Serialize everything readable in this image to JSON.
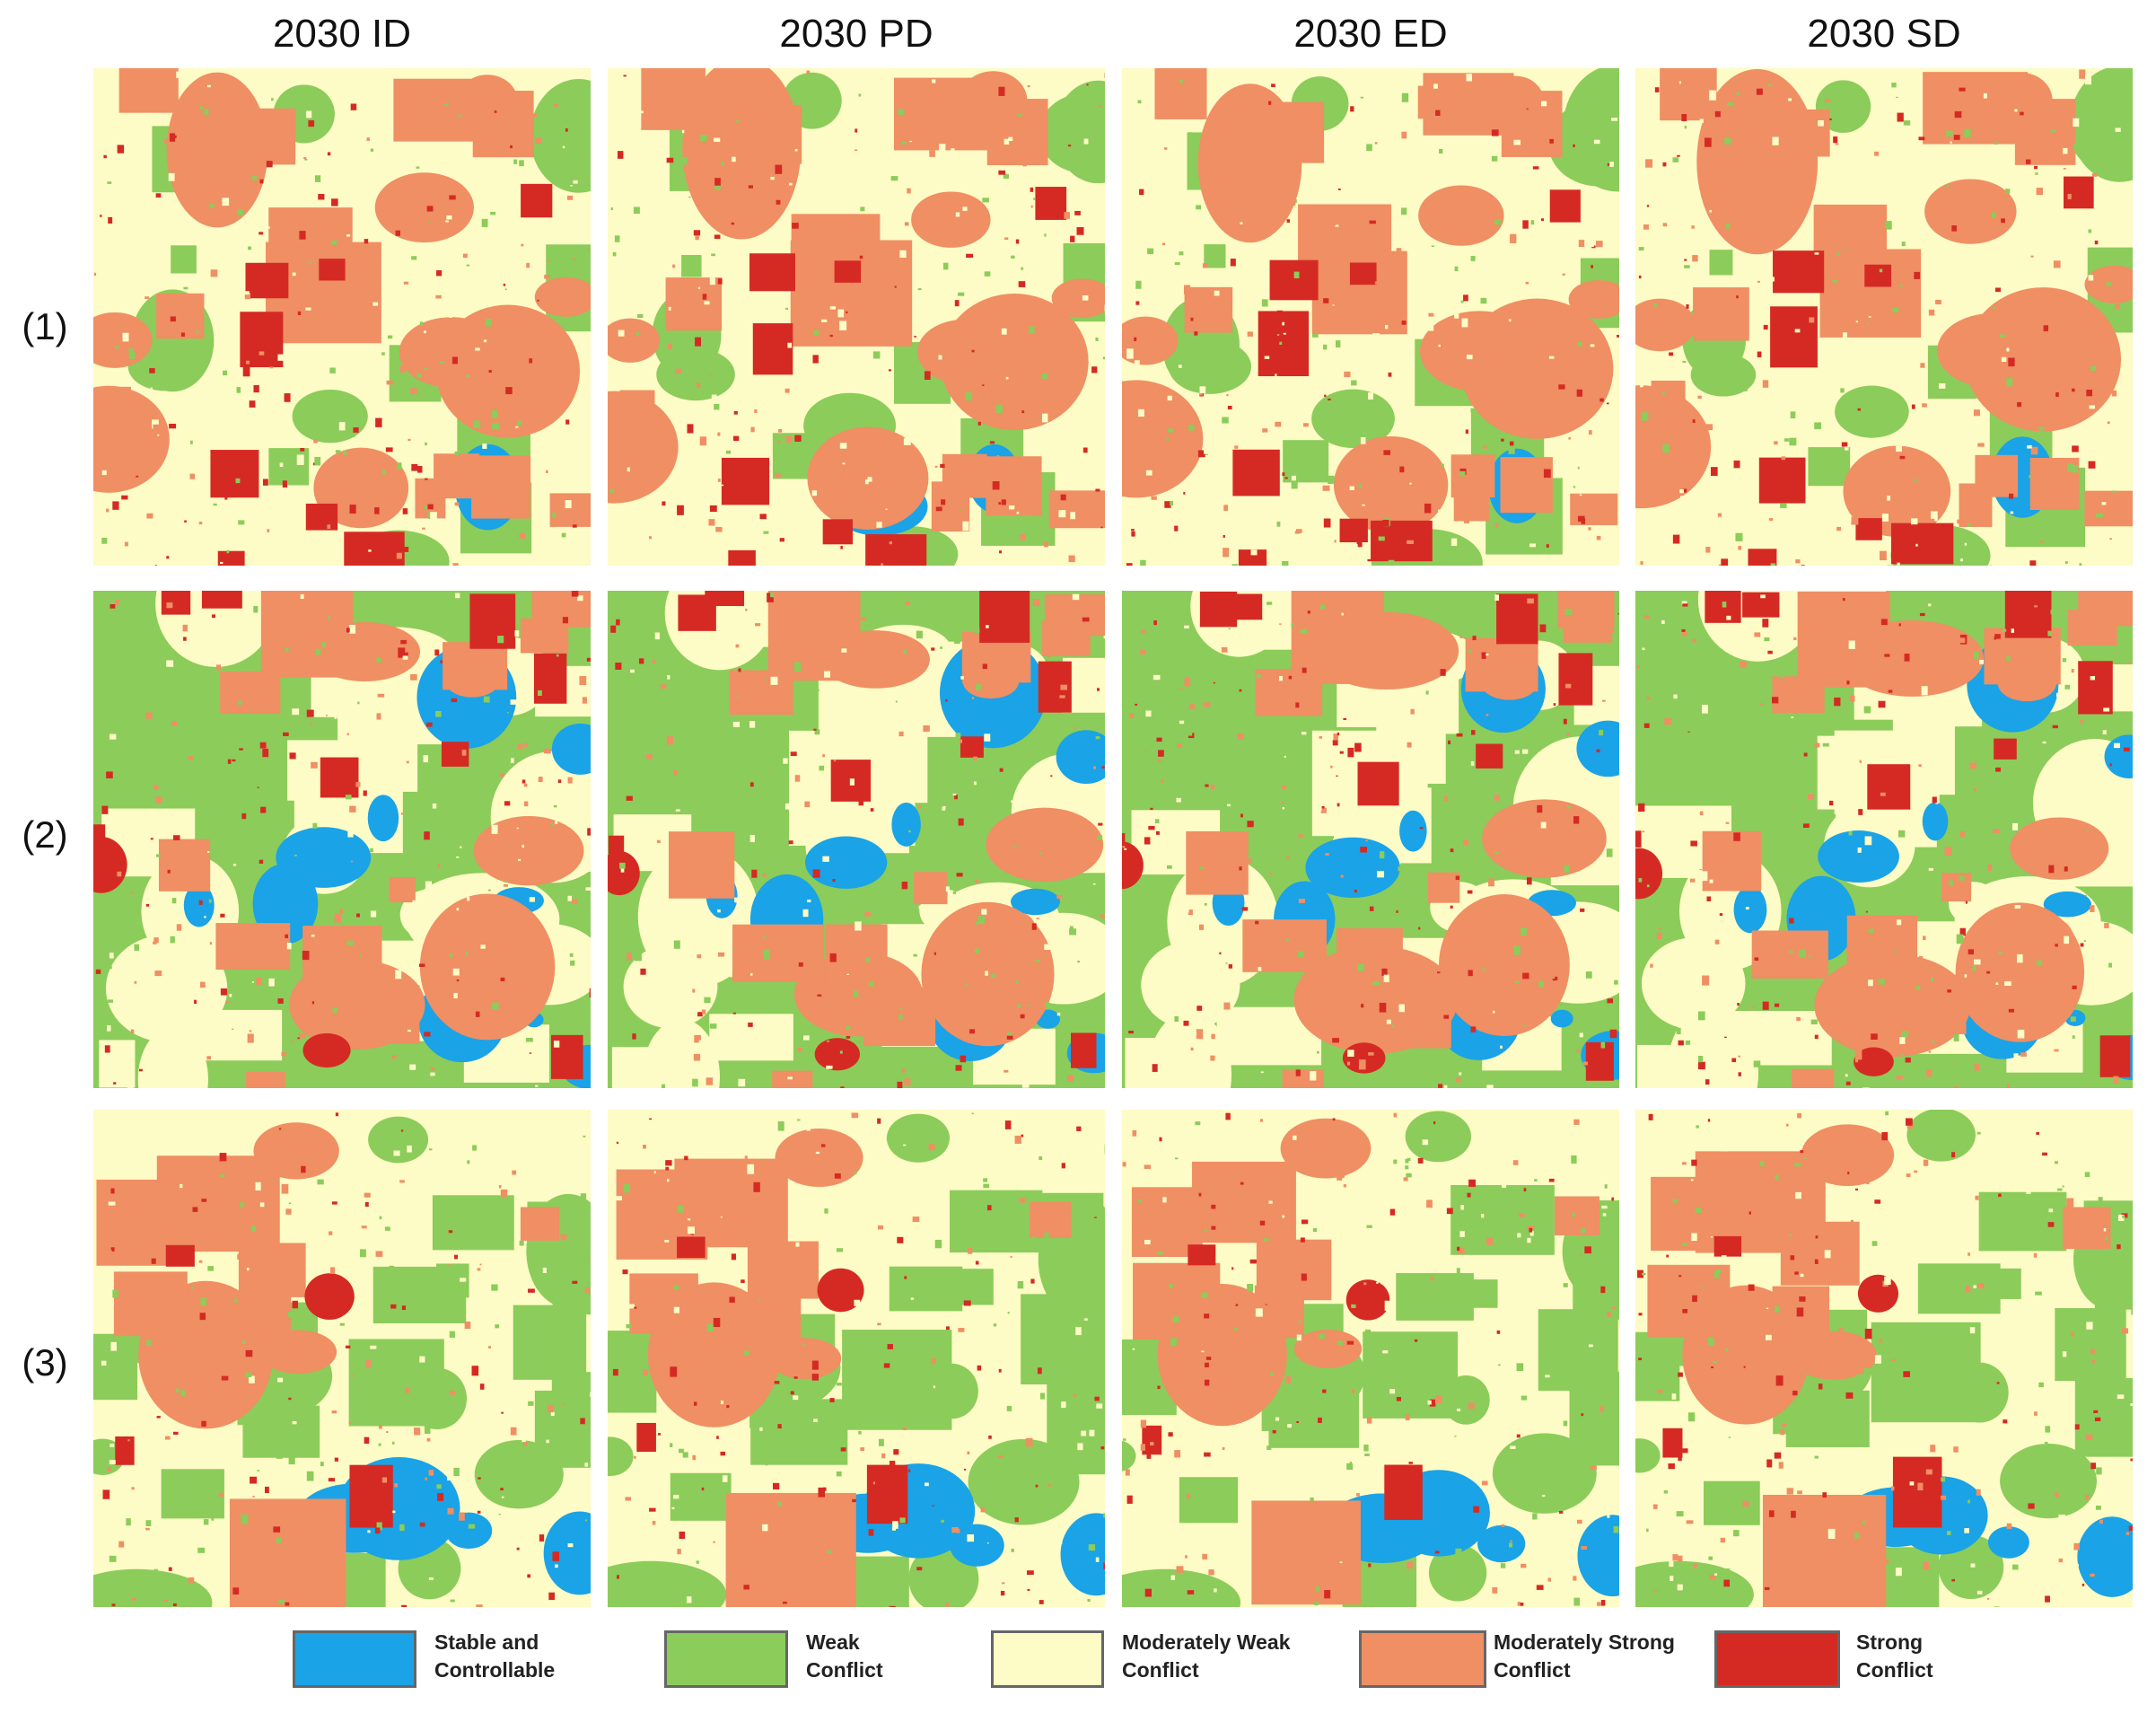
{
  "columns": [
    "2030 ID",
    "2030 PD",
    "2030 ED",
    "2030 SD"
  ],
  "rows": [
    "(1)",
    "(2)",
    "(3)"
  ],
  "legend": [
    {
      "key": "stable",
      "lines": [
        "Stable and",
        "Controllable"
      ],
      "color": "#1aa3e6"
    },
    {
      "key": "weak",
      "lines": [
        "Weak",
        "Conflict"
      ],
      "color": "#8ccc5a"
    },
    {
      "key": "modweak",
      "lines": [
        "Moderately Weak",
        "Conflict"
      ],
      "color": "#fdfbc6"
    },
    {
      "key": "modstrong",
      "lines": [
        "Moderately Strong",
        "Conflict"
      ],
      "color": "#ef8f63"
    },
    {
      "key": "strong",
      "lines": [
        "Strong",
        "Conflict"
      ],
      "color": "#d52a23"
    }
  ]
}
